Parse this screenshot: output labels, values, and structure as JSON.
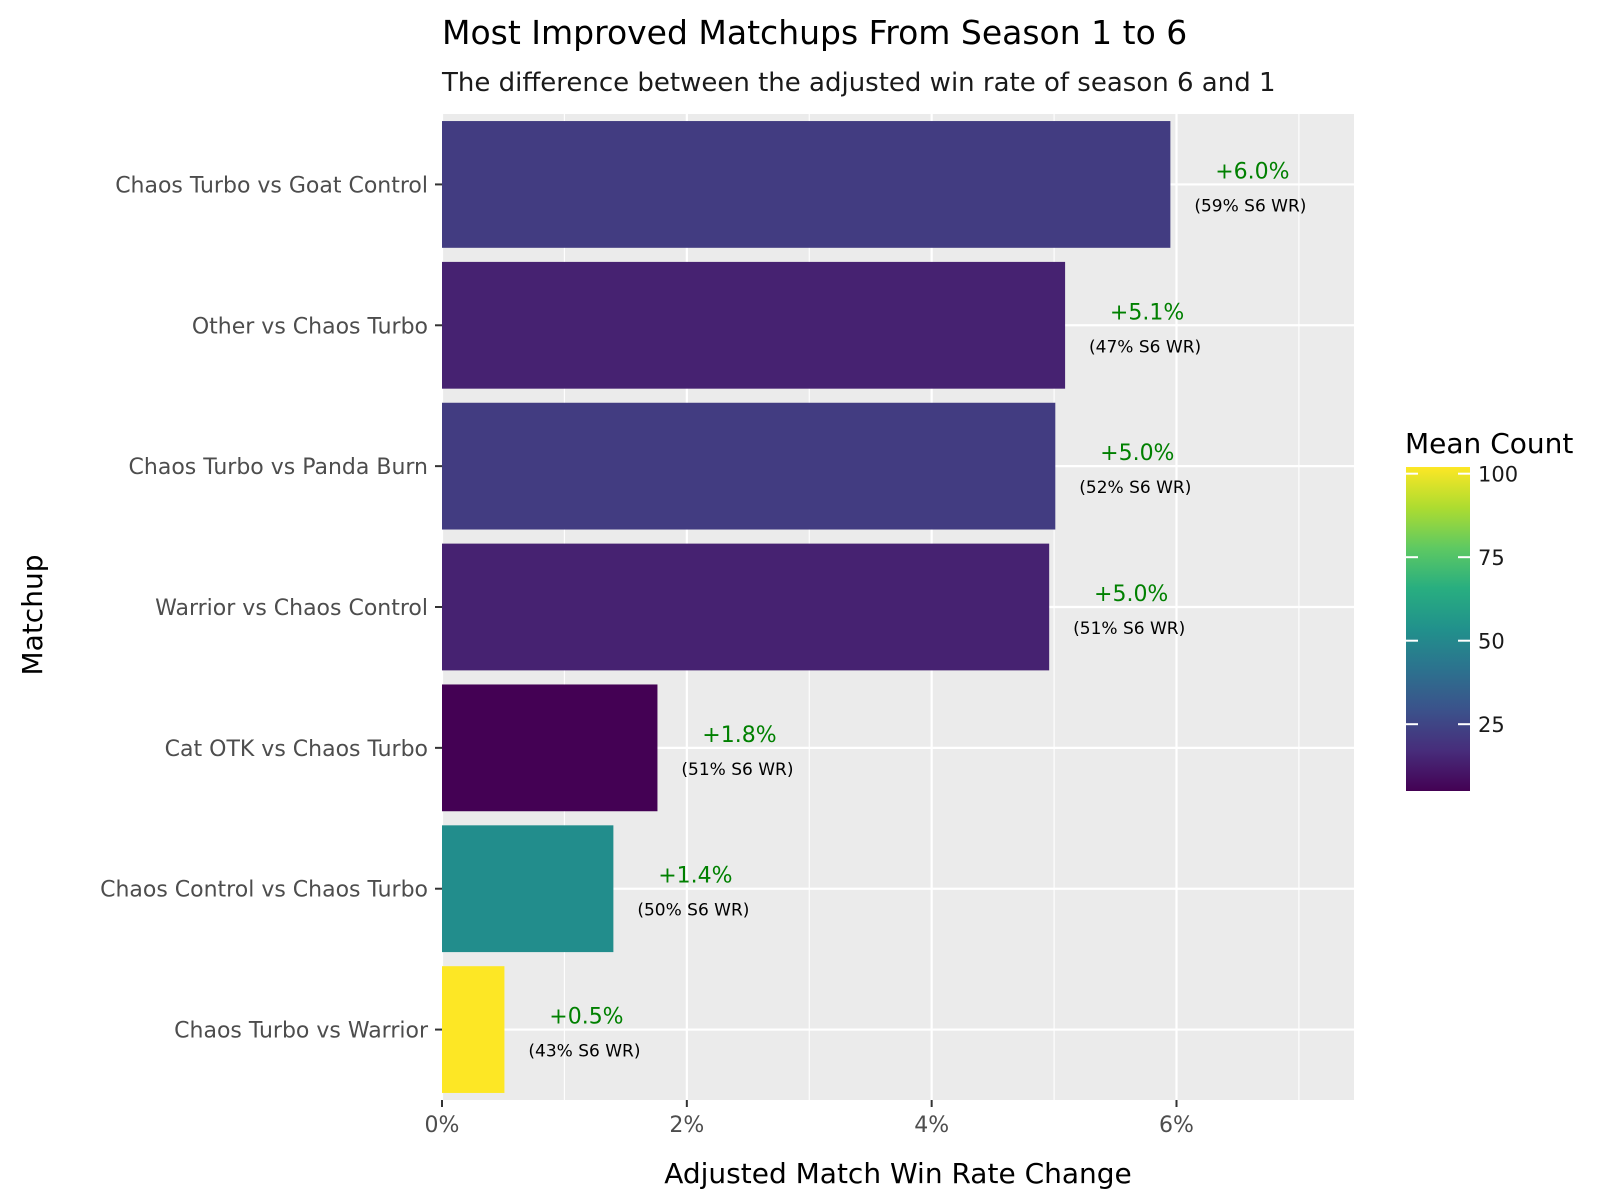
{
  "chart_data": {
    "type": "bar",
    "orientation": "horizontal",
    "title": "Most Improved Matchups From Season 1 to 6",
    "subtitle": "The difference between the adjusted win rate of season 6 and 1",
    "xlabel": "Adjusted Match Win Rate Change",
    "ylabel": "Matchup",
    "xlim": [
      0,
      7.45
    ],
    "x_ticks": [
      0,
      2,
      4,
      6
    ],
    "x_tick_labels": [
      "0%",
      "2%",
      "4%",
      "6%"
    ],
    "grid": true,
    "categories": [
      "Chaos Turbo vs Goat Control",
      "Other vs Chaos Turbo",
      "Chaos Turbo vs Panda Burn",
      "Warrior vs Chaos Control",
      "Cat OTK vs Chaos Turbo",
      "Chaos Control vs Chaos Turbo",
      "Chaos Turbo vs Warrior"
    ],
    "values": [
      5.95,
      5.09,
      5.01,
      4.96,
      1.76,
      1.4,
      0.51
    ],
    "delta_labels": [
      "+6.0%",
      "+5.1%",
      "+5.0%",
      "+5.0%",
      "+1.8%",
      "+1.4%",
      "+0.5%"
    ],
    "s6_wr_labels": [
      "(59% S6 WR)",
      "(47% S6 WR)",
      "(52% S6 WR)",
      "(51% S6 WR)",
      "(51% S6 WR)",
      "(50% S6 WR)",
      "(43% S6 WR)"
    ],
    "mean_count": [
      22,
      14,
      22,
      14,
      5,
      52,
      102
    ],
    "delta_label_color": "#008000",
    "legend": {
      "title": "Mean Count",
      "placement": "right",
      "min": 5,
      "max": 102,
      "ticks": [
        25,
        50,
        75,
        100
      ],
      "tick_labels": [
        "25",
        "50",
        "75",
        "100"
      ],
      "colormap": "viridis"
    }
  }
}
